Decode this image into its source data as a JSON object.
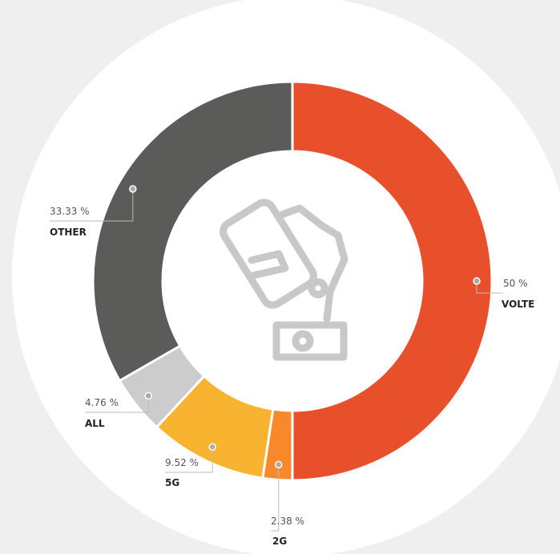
{
  "chart_data": {
    "type": "donut",
    "categories": [
      "VOLTE",
      "2G",
      "5G",
      "ALL",
      "OTHER"
    ],
    "values": [
      50,
      2.38,
      9.52,
      4.76,
      33.33
    ],
    "value_labels": [
      "50 %",
      "2.38 %",
      "9.52 %",
      "4.76 %",
      "33.33 %"
    ],
    "colors": [
      "#e8502b",
      "#f7892a",
      "#f8b330",
      "#cccccc",
      "#5b5b59"
    ]
  }
}
